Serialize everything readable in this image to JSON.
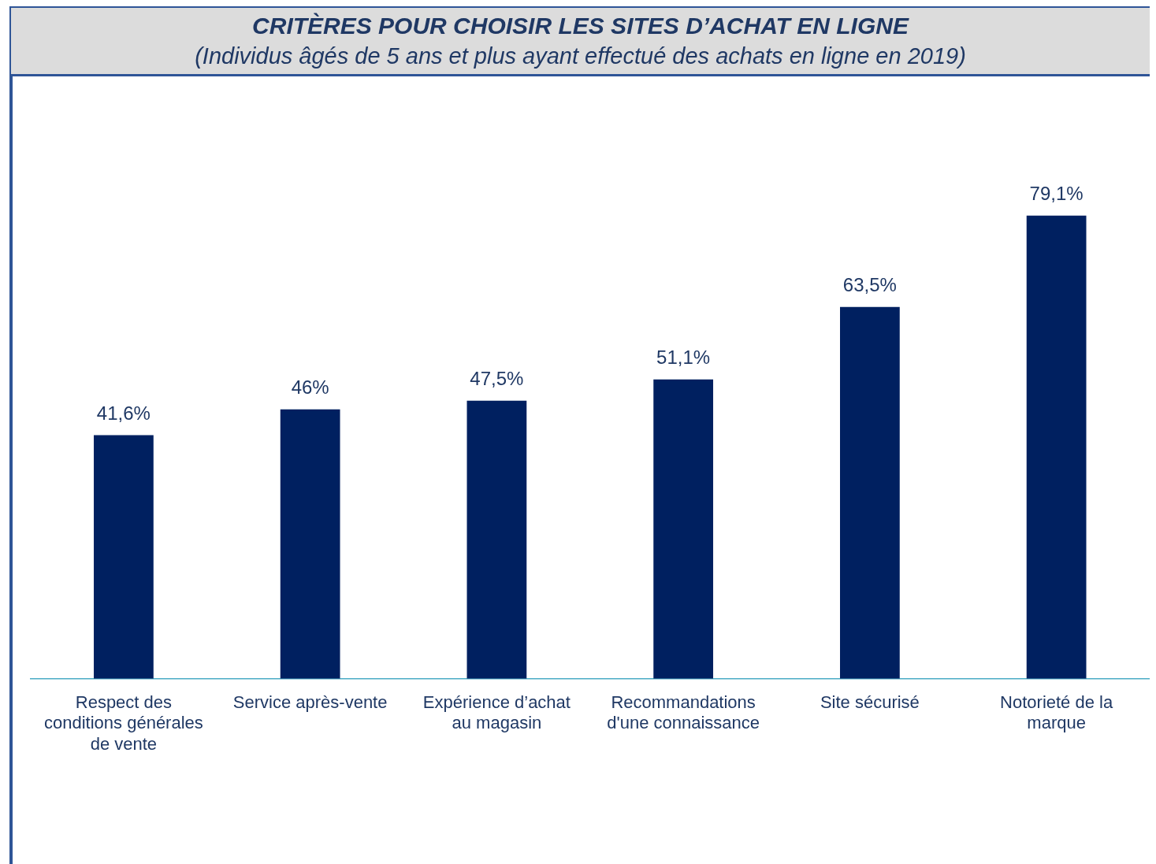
{
  "chart_data": {
    "type": "bar",
    "title": "CRITÈRES POUR CHOISIR LES SITES D’ACHAT EN LIGNE",
    "subtitle": "(Individus âgés de 5 ans et plus ayant effectué des achats en ligne en 2019)",
    "categories": [
      "Respect des conditions générales de vente",
      "Service après-vente",
      "Expérience d’achat au magasin",
      "Recommandations d'une connaissance",
      "Site sécurisé",
      "Notorieté de la marque"
    ],
    "values": [
      41.6,
      46,
      47.5,
      51.1,
      63.5,
      79.1
    ],
    "value_labels": [
      "41,6%",
      "46%",
      "47,5%",
      "51,1%",
      "63,5%",
      "79,1%"
    ],
    "color": "#002060",
    "tick_labels": "x",
    "grid": false,
    "legend": false
  }
}
